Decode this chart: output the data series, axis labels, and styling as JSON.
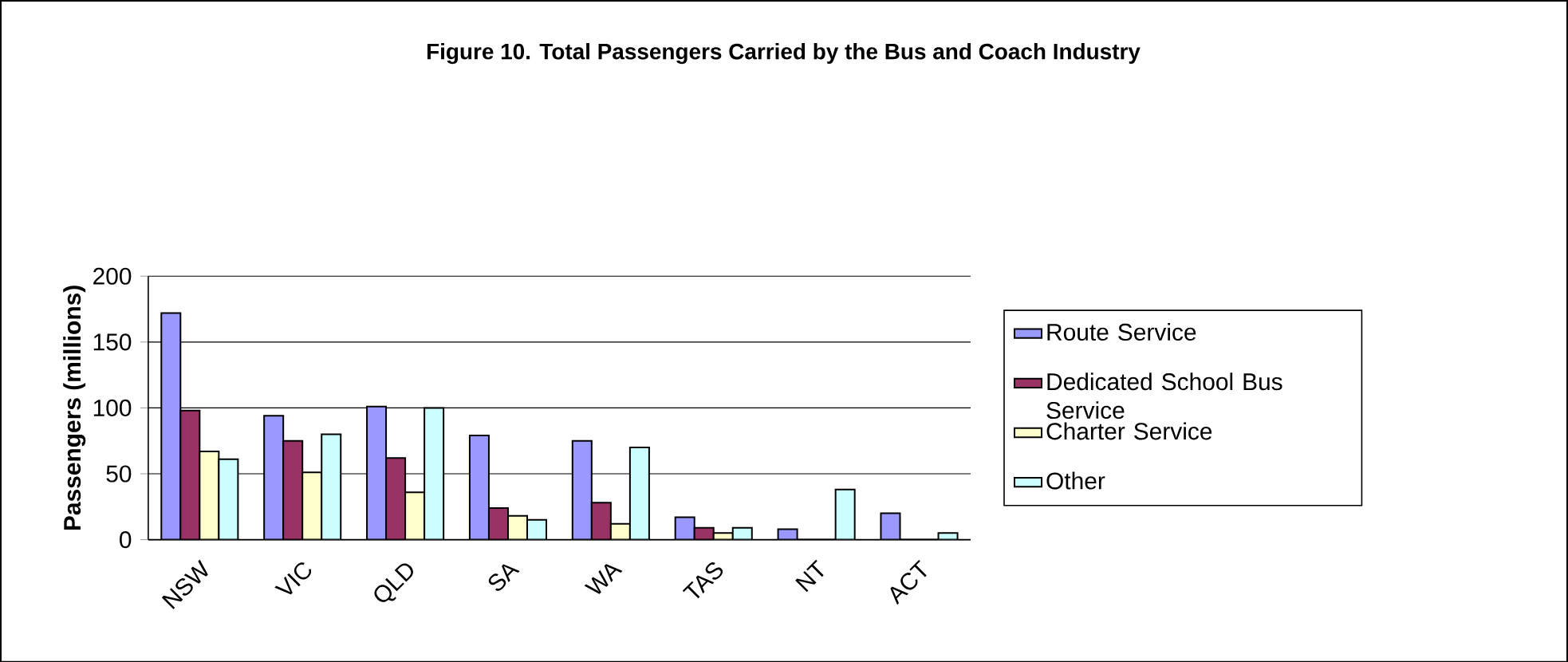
{
  "chart_data": {
    "type": "bar",
    "title": "Figure 10. Total Passengers Carried by the Bus and Coach Industry",
    "ylabel": "Passengers (millions)",
    "categories": [
      "NSW",
      "VIC",
      "QLD",
      "SA",
      "WA",
      "TAS",
      "NT",
      "ACT"
    ],
    "series": [
      {
        "name": "Route Service",
        "color": "#9999ff",
        "values": [
          172,
          94,
          101,
          79,
          75,
          17,
          8,
          20
        ]
      },
      {
        "name": "Dedicated School Bus Service",
        "color": "#993366",
        "values": [
          98,
          75,
          62,
          24,
          28,
          9,
          0,
          0
        ]
      },
      {
        "name": "Charter Service",
        "color": "#ffffcc",
        "values": [
          67,
          51,
          36,
          18,
          12,
          5,
          0,
          0
        ]
      },
      {
        "name": "Other",
        "color": "#ccffff",
        "values": [
          61,
          80,
          100,
          15,
          70,
          9,
          38,
          5
        ]
      }
    ],
    "ylim": [
      0,
      200
    ],
    "yticks": [
      0,
      50,
      100,
      150,
      200
    ],
    "grid": "y",
    "legend": "right"
  }
}
